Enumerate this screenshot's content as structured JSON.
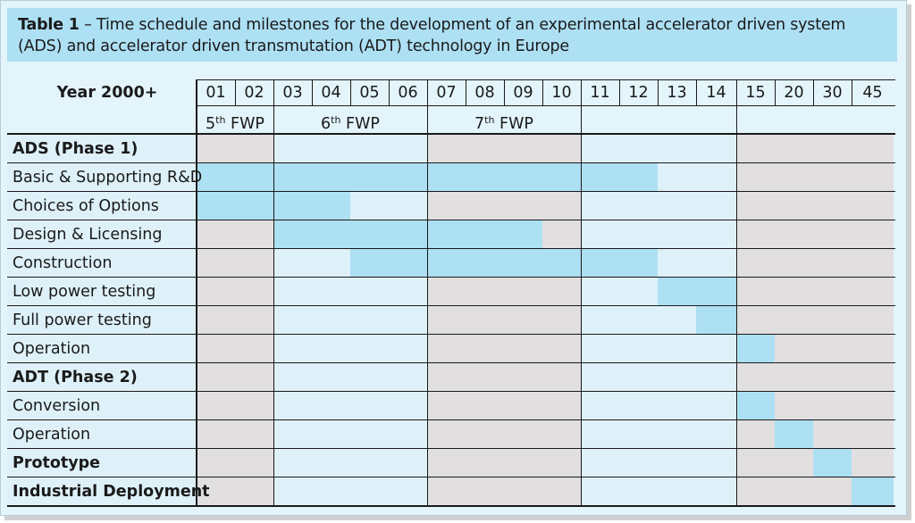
{
  "caption": {
    "label": "Table 1",
    "text": " – Time schedule and milestones for the development of an experimental accelerator driven system (ADS) and accelerator driven transmutation (ADT) technology in Europe"
  },
  "header": {
    "year_label": "Year 2000+",
    "years": [
      "01",
      "02",
      "03",
      "04",
      "05",
      "06",
      "07",
      "08",
      "09",
      "10",
      "11",
      "12",
      "13",
      "14",
      "15",
      "20",
      "30",
      "45"
    ],
    "fwp": [
      {
        "num": "5",
        "sup": "th",
        "label": " FWP"
      },
      {
        "num": "6",
        "sup": "th",
        "label": " FWP"
      },
      {
        "num": "7",
        "sup": "th",
        "label": " FWP"
      }
    ]
  },
  "rows": [
    {
      "label": "ADS (Phase 1)",
      "bold": true,
      "bars": []
    },
    {
      "label": "Basic & Supporting R&D",
      "bold": false,
      "bars": [
        [
          0,
          12
        ]
      ]
    },
    {
      "label": "Choices of Options",
      "bold": false,
      "bars": [
        [
          0,
          4
        ]
      ]
    },
    {
      "label": "Design & Licensing",
      "bold": false,
      "bars": [
        [
          2,
          9
        ]
      ]
    },
    {
      "label": "Construction",
      "bold": false,
      "bars": [
        [
          4,
          12
        ]
      ]
    },
    {
      "label": "Low power testing",
      "bold": false,
      "bars": [
        [
          12,
          14
        ]
      ]
    },
    {
      "label": "Full power testing",
      "bold": false,
      "bars": [
        [
          13,
          14
        ]
      ]
    },
    {
      "label": "Operation",
      "bold": false,
      "bars": [
        [
          14,
          15
        ]
      ]
    },
    {
      "label": "ADT (Phase 2)",
      "bold": true,
      "bars": []
    },
    {
      "label": "Conversion",
      "bold": false,
      "bars": [
        [
          14,
          15
        ]
      ]
    },
    {
      "label": "Operation",
      "bold": false,
      "bars": [
        [
          15,
          16
        ]
      ]
    },
    {
      "label": "Prototype",
      "bold": true,
      "bars": [
        [
          16,
          17
        ]
      ]
    },
    {
      "label": "Industrial Deployment",
      "bold": true,
      "bars": [
        [
          17,
          18
        ]
      ]
    }
  ],
  "colors": {
    "bar": "#aee0f4",
    "light": "#def1f9",
    "grey": "#e1dfe0",
    "caption_bg": "#aee0f4"
  }
}
